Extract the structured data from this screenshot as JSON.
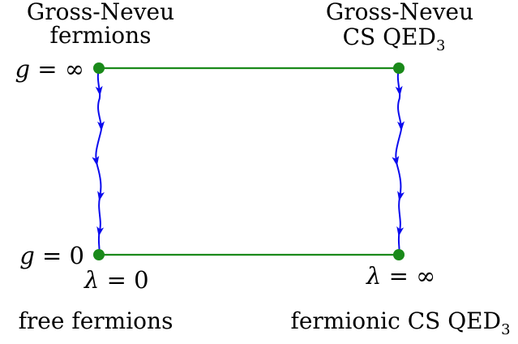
{
  "colors": {
    "horizontal_line": "#1a8a1a",
    "node": "#1a8a1a",
    "flow_arrow": "#0a0aee",
    "text": "#000000"
  },
  "labels": {
    "top_left_line1": "Gross-Neveu",
    "top_left_line2": "fermions",
    "top_right_line1": "Gross-Neveu",
    "top_right_line2": "CS QED",
    "top_right_line2_sub": "3",
    "g_inf_var": "g",
    "g_inf_rest": " = ∞",
    "g_zero_var": "g",
    "g_zero_rest": " = 0",
    "lambda_zero_var": "λ",
    "lambda_zero_rest": " = 0",
    "lambda_inf_var": "λ",
    "lambda_inf_rest": " = ∞",
    "bottom_left": "free fermions",
    "bottom_right": "fermionic CS QED",
    "bottom_right_sub": "3"
  },
  "nodes": [
    {
      "name": "node-top-left"
    },
    {
      "name": "node-top-right"
    },
    {
      "name": "node-bottom-left"
    },
    {
      "name": "node-bottom-right"
    }
  ],
  "flows": [
    {
      "name": "rg-flow-left",
      "direction": "down",
      "arrow_count": 5
    },
    {
      "name": "rg-flow-right",
      "direction": "down",
      "arrow_count": 5
    }
  ]
}
